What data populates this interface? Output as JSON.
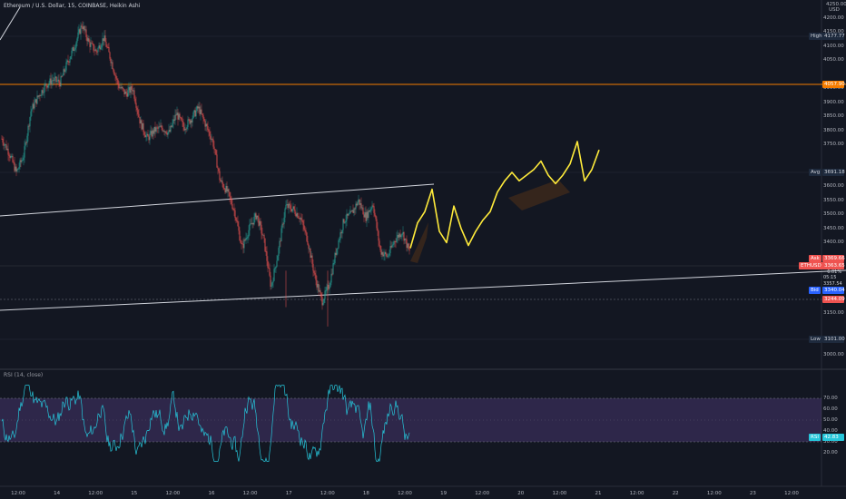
{
  "header": {
    "title": "Ethereum / U.S. Dollar, 15, COINBASE, Heikin Ashi",
    "currency": [
      "4250.00",
      "USD"
    ]
  },
  "rsi": {
    "title": "RSI (14, close)",
    "label": "RSI",
    "value": "42.83",
    "ticks": [
      "70.00",
      "60.00",
      "50.00",
      "40.00",
      "30.00",
      "20.00"
    ]
  },
  "price_axis": {
    "ticks": [
      "4200.00",
      "4150.00",
      "4100.00",
      "4050.00",
      "3950.00",
      "3900.00",
      "3850.00",
      "3800.00",
      "3750.00",
      "3650.00",
      "3600.00",
      "3550.00",
      "3500.00",
      "3450.00",
      "3400.00",
      "3200.00",
      "3150.00",
      "3050.00",
      "3000.00"
    ]
  },
  "markers": {
    "high": {
      "label": "High",
      "value": "4177.77"
    },
    "level": {
      "value": "4057.90"
    },
    "avg": {
      "label": "Avg",
      "value": "3691.18"
    },
    "ask": {
      "label": "Ask",
      "value": "3369.66"
    },
    "symbol": {
      "label": "ETHUSD",
      "value": "3363.65"
    },
    "change": "−6.01%",
    "countdown": "05:15",
    "prev": "3357.54",
    "bid": {
      "label": "Bid",
      "value": "3340.04"
    },
    "dashed": {
      "value": "3244.09"
    },
    "low": {
      "label": "Low",
      "value": "3101.00"
    }
  },
  "time_axis": {
    "labels": [
      "12:00",
      "14",
      "12:00",
      "15",
      "12:00",
      "16",
      "12:00",
      "17",
      "12:00",
      "18",
      "12:00",
      "19",
      "12:00",
      "20",
      "12:00",
      "21",
      "12:00",
      "22",
      "12:00",
      "23",
      "12:00"
    ]
  },
  "colors": {
    "background": "#131722",
    "up": "#26a69a",
    "down": "#ef5350",
    "level_line": "#f57c00",
    "projection": "#ffeb3b",
    "rsi_line": "#26c6da",
    "rsi_band": "#7e57c2",
    "trendline": "#d1d4dc"
  },
  "chart_data": {
    "type": "candlestick",
    "symbol": "ETHUSD",
    "timeframe": "15",
    "x": [
      "14",
      "15",
      "16",
      "17",
      "18",
      "19",
      "20",
      "21"
    ],
    "price_range": [
      3000,
      4250
    ],
    "price_path": [
      [
        0,
        3770
      ],
      [
        1,
        3720
      ],
      [
        2,
        3650
      ],
      [
        3,
        3710
      ],
      [
        4,
        3870
      ],
      [
        5,
        3920
      ],
      [
        6,
        3960
      ],
      [
        7,
        3980
      ],
      [
        8,
        3970
      ],
      [
        9,
        4040
      ],
      [
        10,
        4100
      ],
      [
        11,
        4177
      ],
      [
        12,
        4110
      ],
      [
        13,
        4080
      ],
      [
        14,
        4130
      ],
      [
        15,
        4050
      ],
      [
        16,
        3960
      ],
      [
        17,
        3930
      ],
      [
        18,
        3950
      ],
      [
        19,
        3830
      ],
      [
        20,
        3770
      ],
      [
        21,
        3800
      ],
      [
        22,
        3810
      ],
      [
        23,
        3790
      ],
      [
        24,
        3860
      ],
      [
        25,
        3810
      ],
      [
        26,
        3840
      ],
      [
        27,
        3880
      ],
      [
        28,
        3820
      ],
      [
        29,
        3760
      ],
      [
        30,
        3620
      ],
      [
        31,
        3580
      ],
      [
        32,
        3510
      ],
      [
        33,
        3380
      ],
      [
        34,
        3450
      ],
      [
        35,
        3500
      ],
      [
        36,
        3410
      ],
      [
        37,
        3240
      ],
      [
        38,
        3370
      ],
      [
        39,
        3530
      ],
      [
        40,
        3520
      ],
      [
        41,
        3490
      ],
      [
        42,
        3410
      ],
      [
        43,
        3280
      ],
      [
        44,
        3190
      ],
      [
        45,
        3250
      ],
      [
        46,
        3380
      ],
      [
        47,
        3480
      ],
      [
        48,
        3500
      ],
      [
        49,
        3550
      ],
      [
        50,
        3490
      ],
      [
        51,
        3540
      ],
      [
        52,
        3370
      ],
      [
        53,
        3350
      ],
      [
        54,
        3410
      ],
      [
        55,
        3440
      ],
      [
        56,
        3365
      ]
    ],
    "projection": [
      3380,
      3470,
      3510,
      3590,
      3440,
      3400,
      3530,
      3450,
      3390,
      3440,
      3480,
      3510,
      3580,
      3620,
      3650,
      3620,
      3640,
      3660,
      3690,
      3640,
      3610,
      3640,
      3680,
      3760,
      3620,
      3660,
      3730
    ],
    "horizontal_levels": [
      4057.9,
      3244.09
    ],
    "rsi_period": 14,
    "rsi_levels": [
      70,
      30
    ],
    "rsi_last": 42.83
  }
}
